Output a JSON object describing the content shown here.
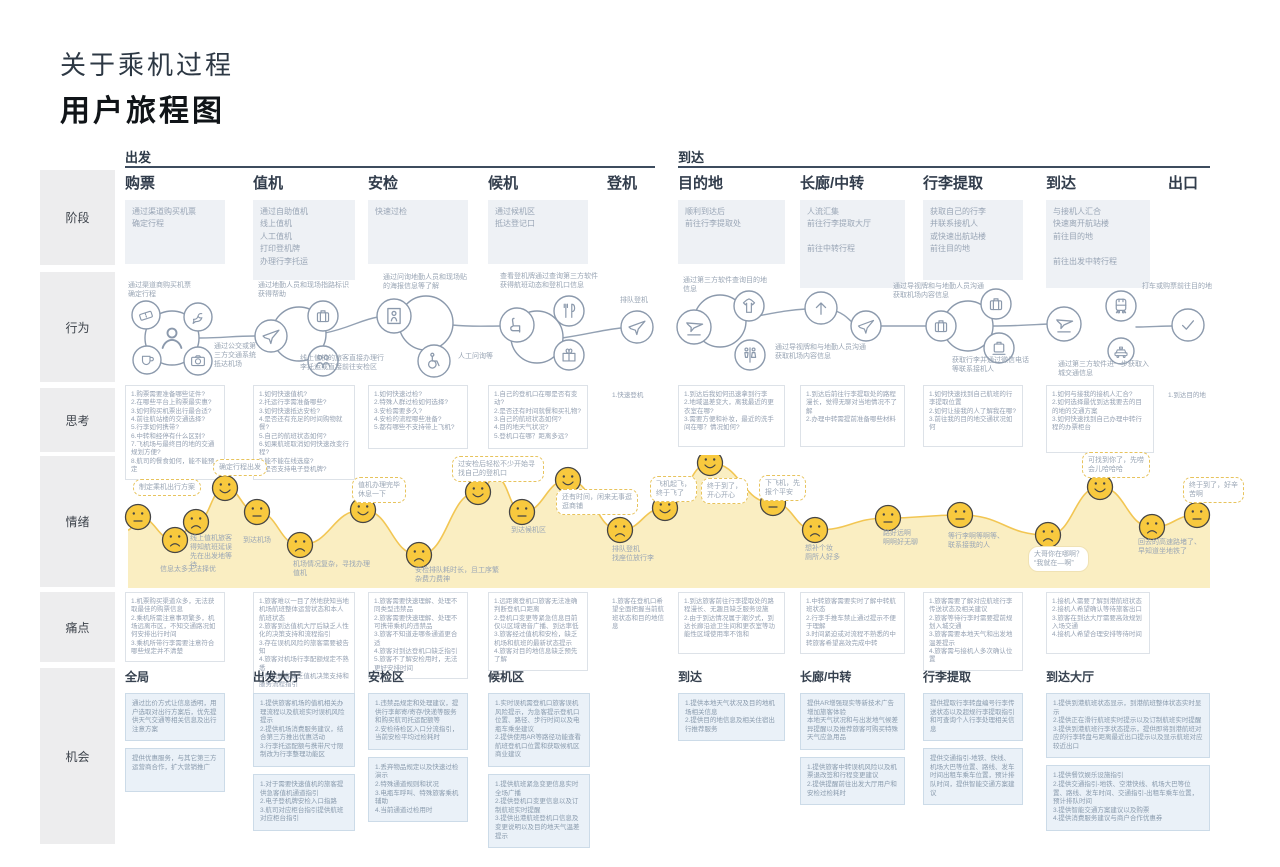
{
  "title": {
    "line1": "关于乘机过程",
    "line2": "用户旅程图"
  },
  "row_labels": [
    "阶段",
    "行为",
    "思考",
    "情绪",
    "痛点",
    "机会"
  ],
  "sections": {
    "departure": "出发",
    "arrival": "到达"
  },
  "stages": [
    {
      "name": "购票",
      "desc": "通过渠道购买机票\n确定行程"
    },
    {
      "name": "值机",
      "desc": "通过自助值机\n线上值机\n人工值机\n打印登机牌\n办理行李托运"
    },
    {
      "name": "安检",
      "desc": "快速过检"
    },
    {
      "name": "候机",
      "desc": "通过候机区\n抵达登记口"
    },
    {
      "name": "登机",
      "desc": ""
    },
    {
      "name": "目的地",
      "desc": "顺利到达后\n前往行李提取处"
    },
    {
      "name": "长廊/中转",
      "desc": "人流汇集\n前往行李提取大厅\n\n前往中转行程"
    },
    {
      "name": "行李提取",
      "desc": "获取自己的行李\n并联系接机人\n或快速出航站楼\n前往目的地"
    },
    {
      "name": "到达",
      "desc": "与接机人汇合\n快速离开航站楼\n前往目的地\n\n前往出发中转行程"
    },
    {
      "name": "出口",
      "desc": ""
    }
  ],
  "behaviors": {
    "icons": [
      "ticket",
      "person",
      "dove",
      "cup",
      "camera",
      "plane",
      "suitcase",
      "people",
      "security-gate",
      "wheelchair",
      "seat",
      "restaurant",
      "gift",
      "boarding-plane",
      "landing-plane",
      "jacket",
      "restroom",
      "arrow-up",
      "transfer-plane",
      "luggage",
      "luggage-question",
      "luggage-scale",
      "train",
      "taxi",
      "checkmark"
    ],
    "annotations": [
      "通过渠道商购买机票\n确定行程",
      "通过公交或第三方交通系统抵达机场",
      "通过地勤人员和现场指路标识获得帮助",
      "线上值机的旅客直接办理行李托运或直接前往安检区",
      "通过问询地勤人员和现场贴的海报信息等了解",
      "人工问询等",
      "查看登机牌通过查询第三方软件获得航班动态和登机口信息",
      "排队登机",
      "通过第三方软件查询目的地信息",
      "通过导视牌和与地勤人员沟通获取机场内容信息",
      "通过导视牌和与地勤人员沟通获取机场内容信息",
      "获取行李并通过微信电话等联系接机人",
      "通过第三方软件进一步获取入城交通信息",
      "打车或购票前往目的地"
    ]
  },
  "thoughts": [
    "1.购票需要准备哪些证件?\n2.在哪些平台上购票最实惠?\n3.如何购买机票出行最合适?\n4.前往航站楼的交通选择?\n5.行李如何携带?\n6.中转和经停有什么区别?\n7.飞机场与最终目的地的交通规划方便?\n8.航司的餐食如何，能不能预定",
    "1.如何快速值机?\n2.托运行李需准备哪些?\n3.如何快速抵达安检?\n4.是否还有充足的时间购物就餐?\n5.自己的航班状态如何?\n6.如果航班取消如何快速改变行程?\n7.能不能在线选座?\n8.是否支持电子登机牌?",
    "1.如何快速过检?\n2.特殊人群过检如何选择?\n3.安检需要多久?\n4.安检的流程哪些准备?\n5.都有哪些不支持带上飞机?",
    "1.自己的登机口在哪是否有变动?\n2.是否还有时间就餐和买礼物?\n3.自己的航班状态如何?\n4.目的地天气状况?\n5.登机口在哪？距离多远?",
    "1.快速登机",
    "1.到达后我如何迅速拿到行李\n2.地域温差变大，离我最近的更衣室在哪?\n3.需要方便和补妆，最近的洗手间在哪？情况如何?",
    "1.到达后前往行李提取处的路程漫长，觉得无聊对当地情况不了解\n2.办理中转需提前准备哪些材料",
    "1.如何快速找到自己航班的行李提取位置\n2.如何让接我的人了解我在哪?\n3.前往我的目的地交通状况如何",
    "1.如何与接我的接机人汇合?\n2.如何选择最优到达我要去的目的地的交通方案\n3.如何快速找到自己办理中转行程的办票柜台",
    "1.到达目的地"
  ],
  "emotions": {
    "colors": {
      "area": "#FAEEC2",
      "line": "#F2C653",
      "face": "#F8C93E",
      "face_stroke": "#454545"
    },
    "baseline": 588,
    "curve": [
      [
        128,
        530
      ],
      [
        138,
        517
      ],
      [
        175,
        540
      ],
      [
        196,
        522
      ],
      [
        225,
        488
      ],
      [
        257,
        512
      ],
      [
        300,
        545
      ],
      [
        363,
        510
      ],
      [
        419,
        555
      ],
      [
        478,
        492
      ],
      [
        496,
        478
      ],
      [
        522,
        512
      ],
      [
        568,
        480
      ],
      [
        620,
        530
      ],
      [
        665,
        508
      ],
      [
        710,
        463
      ],
      [
        773,
        503
      ],
      [
        815,
        530
      ],
      [
        888,
        518
      ],
      [
        960,
        515
      ],
      [
        1048,
        535
      ],
      [
        1100,
        487
      ],
      [
        1152,
        527
      ],
      [
        1197,
        515
      ],
      [
        1210,
        518
      ]
    ],
    "faces": [
      [
        138,
        517,
        "flat"
      ],
      [
        175,
        540,
        "sad"
      ],
      [
        196,
        522,
        "sad"
      ],
      [
        225,
        488,
        "happy"
      ],
      [
        257,
        512,
        "flat"
      ],
      [
        300,
        545,
        "sad"
      ],
      [
        363,
        510,
        "happy"
      ],
      [
        419,
        555,
        "sad"
      ],
      [
        478,
        492,
        "happy"
      ],
      [
        522,
        512,
        "flat"
      ],
      [
        568,
        480,
        "happy"
      ],
      [
        620,
        530,
        "sad"
      ],
      [
        665,
        508,
        "happy"
      ],
      [
        710,
        463,
        "happy"
      ],
      [
        773,
        503,
        "flat"
      ],
      [
        815,
        530,
        "sad"
      ],
      [
        888,
        518,
        "flat"
      ],
      [
        960,
        515,
        "flat"
      ],
      [
        1048,
        535,
        "sad"
      ],
      [
        1100,
        487,
        "happy"
      ],
      [
        1152,
        527,
        "sad"
      ],
      [
        1197,
        515,
        "flat"
      ]
    ],
    "annotations": [
      {
        "text": "制定乘机出行方案",
        "type": "bubble"
      },
      {
        "text": "信息太多无法择优",
        "type": "plain"
      },
      {
        "text": "确定行程出发",
        "type": "bubble"
      },
      {
        "text": "线上值机旅客得知航班延误先在出发地等待",
        "type": "plain"
      },
      {
        "text": "到达机场",
        "type": "plain"
      },
      {
        "text": "机场情况复杂，寻找办理值机",
        "type": "plain"
      },
      {
        "text": "值机办理完毕\n休息一下",
        "type": "bubble"
      },
      {
        "text": "安检排队耗时长，且工序繁杂费力费神",
        "type": "plain"
      },
      {
        "text": "过安检后轻松不少开始寻找自己的登机口",
        "type": "bubble"
      },
      {
        "text": "到达候机区",
        "type": "plain"
      },
      {
        "text": "还有时间，闲来无事逛逛商铺",
        "type": "bubble"
      },
      {
        "text": "排队登机\n找座位放行李",
        "type": "plain"
      },
      {
        "text": "飞机起飞，\n终于飞了",
        "type": "bubble"
      },
      {
        "text": "终于到了，\n开心开心",
        "type": "bubble"
      },
      {
        "text": "下飞机，先\n报个平安",
        "type": "bubble"
      },
      {
        "text": "想补个妆\n厕所人好多",
        "type": "plain"
      },
      {
        "text": "路好远啊\n啊啊好无聊",
        "type": "plain"
      },
      {
        "text": "等行李啊等啊等、\n联系接我的人",
        "type": "plain"
      },
      {
        "text": "大哥你在哪啊？\n“我就在—啊”",
        "type": "bubble-solid"
      },
      {
        "text": "可找到你了，先唠\n会儿哈哈哈",
        "type": "bubble"
      },
      {
        "text": "回去的高速路堵了、\n早知道坐地铁了",
        "type": "plain"
      },
      {
        "text": "终于到了，好辛\n苦啊",
        "type": "bubble"
      }
    ]
  },
  "pains": [
    "1.机票购买渠道众多，无法获取最佳的购票信息\n2.乘机所需注意事项繁多，机场远离市区，不知交通路况如何安排出行时间\n3.乘机所带行李需要注意符合哪些规定并不清楚",
    "1.旅客难以一目了然地获知当地机场航班整体运营状态和本人航班状态\n2.旅客到达值机大厅后缺乏人性化的决策支持和流程指引\n3.存在误机风险的旅客需要被告知\n4.旅客对机场行李配额规定不熟悉\n5.候机旅客缺乏值机决策支持和服务流程指引",
    "1.旅客需要快速理解、处理不同类型违禁品\n2.旅客需要快速理解、处理不可携带乘机的违禁品\n3.旅客不知道走哪条通道更合适\n4.旅客对到达登机口缺乏指引\n5.旅客不了解安检用时，无法更好安排时间",
    "1.远距离登机口旅客无法准确判断登机口距离\n2.登机口变更等紧急信息目前仅以区域语音广播、到达率低\n3.旅客经过值机和安检，缺乏机场和航班的最新状态提示\n4.旅客对目的地信息缺乏预先了解",
    "1.旅客在登机口希望全面把握当前航班状态和目的地信息",
    "1.到达旅客前往行李提取处的路程漫长、无趣且缺乏服务设施\n2.由于到达情况属于潮汐式，到达长廊沿途卫生间和更衣室等功能性区域使用率不饱和",
    "1.中转旅客需要实时了解中转航班状态\n2.行李手推车禁止通过提示不便于理解\n3.时间紧迫或对流程不熟悉的中转旅客希望高效完成中转",
    "1.旅客需要了解对应航班行李传送状态及相关建议\n2.旅客等待行李时需要提前规划入城交通\n3.旅客需要本地天气和出发地温差提示\n4.旅客需与接机人多次确认位置",
    "1.接机人需要了解到港航班状态\n2.接机人希望确认等待旅客出口\n3.旅客在到达大厅需要高效规划入场交通\n4.接机人希望合理安排等待时间"
  ],
  "opportunities": [
    {
      "header": "全局",
      "boxes": [
        "通过比价方式让信息透明，用户选取对出行方案后，优先提供天气交通等相关信息及出行注意方案",
        "提供优惠服务，与其它第三方运营商合作，扩大营销推广"
      ]
    },
    {
      "header": "出发大厅",
      "boxes": [
        "1.提供旅客机场的值机相关办理流程以及航班实时误机风险提示\n2.提供机场消费服务建议，结合第三方推出优惠活动\n3.行李托运配额与携带尺寸限制改为行李整理功能区",
        "1.对于需要快速值机的旅客提供急客值机通道指引\n2.电子登机牌安检入口指路\n3.航司对应柜台指引提供航班对应柜台指引"
      ]
    },
    {
      "header": "安检区",
      "boxes": [
        "1.违禁品规定和处理建议，提供行李邮寄/寄存/快递等服务和购买航司托运配额等\n2.安检待检区入口分流指引，当前安检平均过检耗时",
        "1.丢弃物品规定以及快速过检演示\n2.特殊通道规则和状况\n3.电瓶车呼叫、特殊旅客乘机辅助\n4.当前通道过检用时"
      ]
    },
    {
      "header": "候机区",
      "boxes": [
        "1.实时误机需登机口旅客误机风险提示，为急客提示登机口位置、路径、步行时间以及电瓶车乘坐建议\n2.提供使用AR等路径功能查看航班登机口位置和获取候机区商业建议",
        "1.提供航班紧急变更信息实时全场广播\n2.提供登机口变更信息以及订制航班实时提醒\n3.提供出港航班登机口信息及变更说明以及目的地天气温差提示"
      ]
    },
    {
      "header": "到达",
      "boxes": [
        "1.提供本地天气状况及目的地机场相关信息\n2.提供目的地信息及相关住宿出行推荐服务"
      ]
    },
    {
      "header": "长廊/中转",
      "boxes": [
        "提供AR增强现实等新技术广告增加旅客体验\n本地天气状况和与出发地气候差异提醒以及推荐旅客可购买特殊天气应急用品",
        "1.提供旅客中转误机风险以及机票退改签和行程变更建议\n2.提供提醒前往出发大厅用户和安检过检耗时"
      ]
    },
    {
      "header": "行李提取",
      "boxes": [
        "提供提取行李转盘编号行李传送状态以及超规行李提取指引和可查询个人行李处理相关信息",
        "提供交通指引-地铁、快线、机场大巴等位置、路线、发车时间出租车乘车位置，预计排队时间，提供智能交通方案建议"
      ]
    },
    {
      "header": "到达大厅",
      "boxes": [
        "1.提供到港航班状态显示，到港航班整体状态实时显示\n2.提供正在滑行航班实时提示以及订制航班实时提醒\n3.提供到港航班行李状态提示，提供即将到港航班对应的行李转盘与距离最近出口提示以及显示航班对应较近出口",
        "1.提供餐饮娱乐设施指引\n2.提供交通指引-地铁、空港快线、机场大巴等位置、路线、发车时间、交通指引-出租车乘车位置，预计排队时间\n3.提供智能交通方案建议以及购票\n4.提供消费服务建议与商户合作优惠券"
      ]
    }
  ]
}
